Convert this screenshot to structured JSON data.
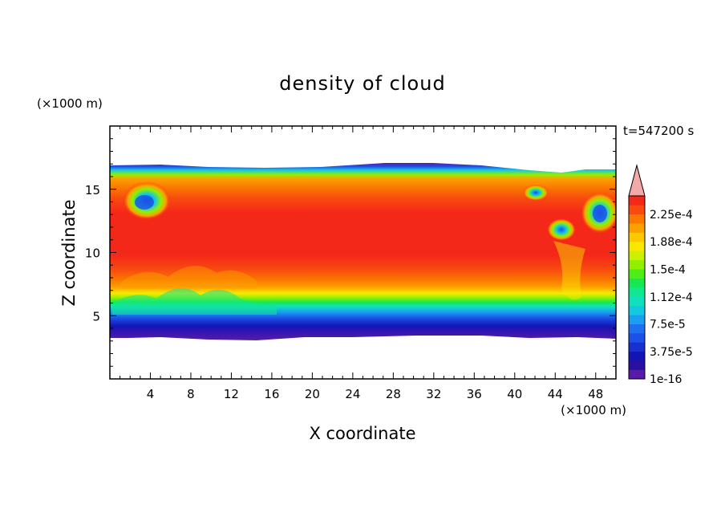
{
  "chart_data": {
    "type": "heatmap",
    "title": "density of cloud",
    "time_label": "t=547200 s",
    "xlabel": "X coordinate",
    "ylabel": "Z coordinate",
    "x_unit": "(×1000 m)",
    "y_unit": "(×1000 m)",
    "xlim": [
      0,
      50
    ],
    "ylim": [
      0,
      20
    ],
    "x_ticks": [
      4,
      8,
      12,
      16,
      20,
      24,
      28,
      32,
      36,
      40,
      44,
      48
    ],
    "y_ticks": [
      5,
      10,
      15
    ],
    "colorbar": {
      "labels": [
        "1e-16",
        "3.75e-5",
        "7.5e-5",
        "1.12e-4",
        "1.5e-4",
        "1.88e-4",
        "2.25e-4"
      ],
      "label_values": [
        0,
        3.75e-05,
        7.5e-05,
        0.000112,
        0.00015,
        0.000188,
        0.000225
      ],
      "levels": [
        0,
        1.25e-05,
        2.5e-05,
        3.75e-05,
        5e-05,
        6.25e-05,
        7.5e-05,
        8.75e-05,
        0.0001,
        0.000112,
        0.000125,
        0.000138,
        0.00015,
        0.000162,
        0.000175,
        0.000188,
        0.0002,
        0.000212,
        0.000225,
        0.000238
      ],
      "colors": [
        "#5a1aa8",
        "#2a10a0",
        "#1414b4",
        "#1830d0",
        "#1c50e6",
        "#1e70f0",
        "#1aa0f0",
        "#14c8e0",
        "#10e0c0",
        "#10e890",
        "#18e850",
        "#50ec18",
        "#90f000",
        "#ccf000",
        "#f8e800",
        "#fcc800",
        "#fca000",
        "#fa7800",
        "#f84a10",
        "#f42818"
      ],
      "extend_max_color": "#f4a8a8"
    },
    "field": {
      "description_levels": "approximate band structure of the density field",
      "cloud_base_z": 3.5,
      "cloud_top_z": 16.7,
      "core_value": 0.00023
    },
    "colors": {
      "axes": "#000000",
      "background": "#ffffff"
    }
  }
}
